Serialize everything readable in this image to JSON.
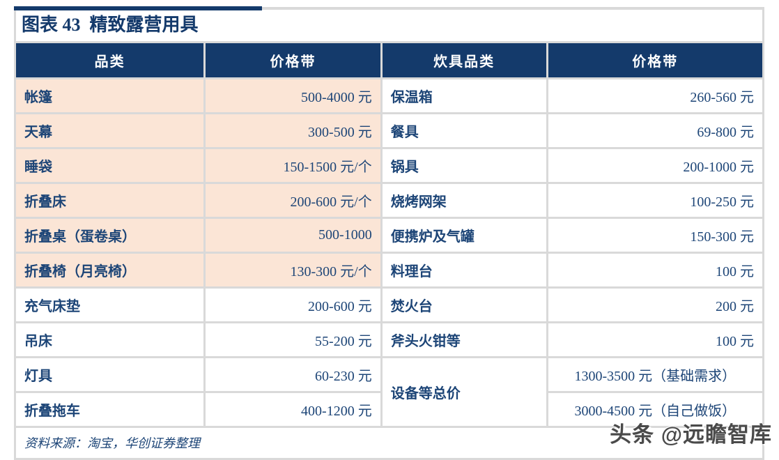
{
  "title": "图表 43  精致露营用具",
  "table": {
    "headers": [
      "品类",
      "价格带",
      "炊具品类",
      "价格带"
    ],
    "left_rows": [
      {
        "name": "帐篷",
        "price": "500-4000 元",
        "highlight": true
      },
      {
        "name": "天幕",
        "price": "300-500 元",
        "highlight": true
      },
      {
        "name": "睡袋",
        "price": "150-1500 元/个",
        "highlight": true
      },
      {
        "name": "折叠床",
        "price": "200-600 元/个",
        "highlight": true
      },
      {
        "name": "折叠桌（蛋卷桌）",
        "price": "500-1000",
        "highlight": true
      },
      {
        "name": "折叠椅（月亮椅）",
        "price": "130-300 元/个",
        "highlight": true
      },
      {
        "name": "充气床垫",
        "price": "200-600 元",
        "highlight": false
      },
      {
        "name": "吊床",
        "price": "55-200 元",
        "highlight": false
      },
      {
        "name": "灯具",
        "price": "60-230 元",
        "highlight": false
      },
      {
        "name": "折叠拖车",
        "price": "400-1200 元",
        "highlight": false
      }
    ],
    "right_rows": [
      {
        "name": "保温箱",
        "price": "260-560 元"
      },
      {
        "name": "餐具",
        "price": "69-800 元"
      },
      {
        "name": "锅具",
        "price": "200-1000 元"
      },
      {
        "name": "烧烤网架",
        "price": "100-250 元"
      },
      {
        "name": "便携炉及气罐",
        "price": "150-300 元"
      },
      {
        "name": "料理台",
        "price": "100 元"
      },
      {
        "name": "焚火台",
        "price": "200 元"
      },
      {
        "name": "斧头火钳等",
        "price": "100 元"
      }
    ],
    "merged": {
      "name": "设备等总价",
      "prices": [
        "1300-3500 元（基础需求）",
        "3000-4500 元（自己做饭）"
      ]
    }
  },
  "footer": {
    "source": "资料来源：淘宝，华创证券整理"
  },
  "watermark": {
    "text": "头条 @远瞻智库"
  },
  "colors": {
    "navy": "#143a6b",
    "text_navy": "#1d4577",
    "peach": "#fbe5d6",
    "border_gray": "#d9d9d9"
  }
}
